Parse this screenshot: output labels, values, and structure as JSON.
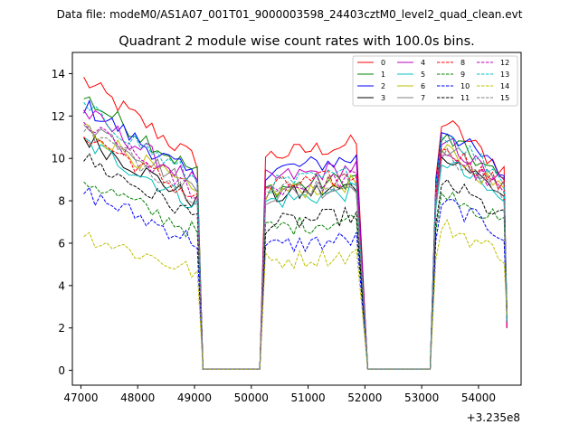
{
  "chart_data": {
    "type": "line",
    "suptitle": "Data file: modeM0/AS1A07_001T01_9000003598_24403cztM0_level2_quad_clean.evt",
    "title": "Quadrant 2 module wise count rates with 100.0s bins.",
    "xlabel": "",
    "ylabel": "",
    "x_offset_label": "+3.235e8",
    "xlim": [
      46850,
      54750
    ],
    "ylim": [
      -0.7,
      15.0
    ],
    "xticks": [
      47000,
      48000,
      49000,
      50000,
      51000,
      52000,
      53000,
      54000
    ],
    "yticks": [
      0,
      2,
      4,
      6,
      8,
      10,
      12,
      14
    ],
    "xtick_labels": [
      "47000",
      "48000",
      "49000",
      "50000",
      "51000",
      "52000",
      "53000",
      "54000"
    ],
    "ytick_labels": [
      "0",
      "2",
      "4",
      "6",
      "8",
      "10",
      "12",
      "14"
    ],
    "legend_position": "top-right",
    "legend_columns": 4,
    "segments": [
      {
        "x_start": 47050,
        "x_end": 49050
      },
      {
        "x_start": 50250,
        "x_end": 51850
      },
      {
        "x_start": 53250,
        "x_end": 54450
      }
    ],
    "gap_x": [
      49150,
      50150,
      52050,
      53150
    ],
    "series": [
      {
        "name": "0",
        "color": "#ff0000",
        "dash": false,
        "levels": [
          13.7,
          10.4,
          12.1
        ]
      },
      {
        "name": "1",
        "color": "#008000",
        "dash": false,
        "levels": [
          12.9,
          8.8,
          11.4
        ]
      },
      {
        "name": "2",
        "color": "#0000ff",
        "dash": false,
        "levels": [
          12.5,
          9.7,
          11.8
        ]
      },
      {
        "name": "3",
        "color": "#000000",
        "dash": false,
        "levels": [
          11.0,
          8.4,
          10.6
        ]
      },
      {
        "name": "4",
        "color": "#bf00bf",
        "dash": false,
        "levels": [
          12.2,
          9.3,
          11.2
        ]
      },
      {
        "name": "5",
        "color": "#00bfbf",
        "dash": false,
        "levels": [
          10.8,
          8.2,
          10.2
        ]
      },
      {
        "name": "6",
        "color": "#bfbf00",
        "dash": false,
        "levels": [
          11.5,
          8.6,
          10.8
        ]
      },
      {
        "name": "7",
        "color": "#808080",
        "dash": false,
        "levels": [
          11.8,
          8.5,
          10.9
        ]
      },
      {
        "name": "8",
        "color": "#ff0000",
        "dash": true,
        "levels": [
          11.2,
          8.9,
          11.0
        ]
      },
      {
        "name": "9",
        "color": "#008000",
        "dash": true,
        "levels": [
          9.0,
          6.9,
          8.8
        ]
      },
      {
        "name": "10",
        "color": "#0000ff",
        "dash": true,
        "levels": [
          8.4,
          6.0,
          8.2
        ]
      },
      {
        "name": "11",
        "color": "#000000",
        "dash": true,
        "levels": [
          10.0,
          7.1,
          9.2
        ]
      },
      {
        "name": "12",
        "color": "#bf00bf",
        "dash": true,
        "levels": [
          11.6,
          8.8,
          10.7
        ]
      },
      {
        "name": "13",
        "color": "#00bfbf",
        "dash": true,
        "levels": [
          12.4,
          9.0,
          11.6
        ]
      },
      {
        "name": "14",
        "color": "#bfbf00",
        "dash": true,
        "levels": [
          6.4,
          5.3,
          7.0
        ]
      },
      {
        "name": "15",
        "color": "#808080",
        "dash": true,
        "levels": [
          11.4,
          8.7,
          10.5
        ]
      }
    ]
  }
}
